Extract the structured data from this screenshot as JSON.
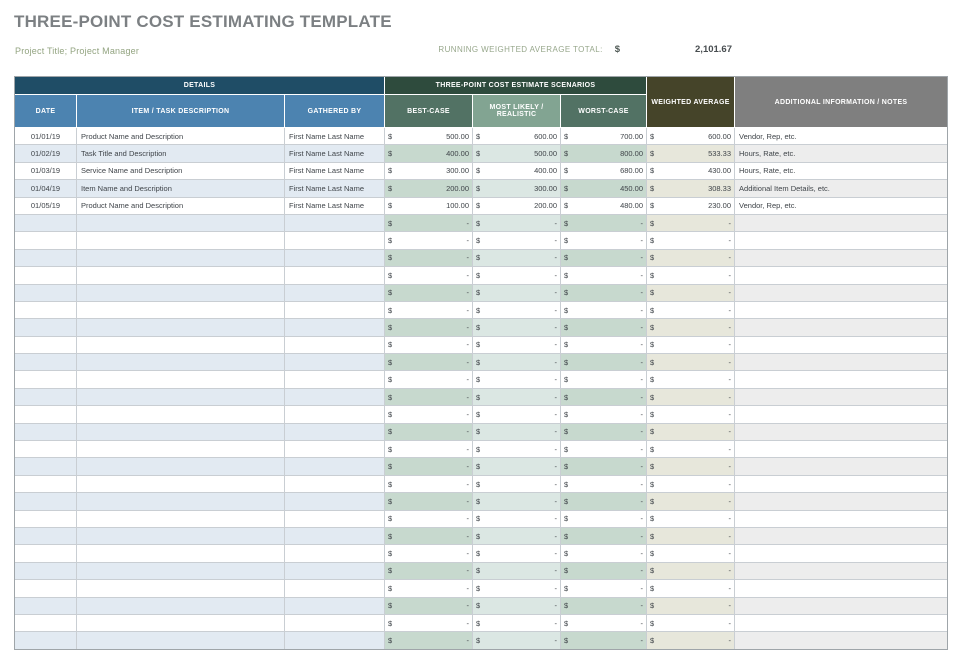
{
  "page": {
    "title": "THREE-POINT COST ESTIMATING TEMPLATE",
    "subtitle": "Project Title; Project Manager",
    "running_total_label": "RUNNING WEIGHTED AVERAGE TOTAL:",
    "currency_symbol": "$",
    "running_total_value": "2,101.67"
  },
  "colors": {
    "accent_green": "#93A481",
    "details_header": "#1F4D66",
    "details_subheader": "#4C83B0",
    "scenarios_header": "#2E4B3D",
    "case_subheader": "#527264",
    "most_likely_subheader": "#82A492",
    "weighted_header": "#454429",
    "notes_header": "#7F7F7F",
    "details_row_tint": "#E2EAF2",
    "case_row_tint": "#C7D9CE",
    "most_likely_row_tint": "#DBE7E3",
    "weighted_row_tint": "#E7E7DB",
    "notes_row_tint": "#EDEDED"
  },
  "table": {
    "group_headers": {
      "details": "DETAILS",
      "scenarios": "THREE-POINT COST ESTIMATE SCENARIOS",
      "weighted": "WEIGHTED AVERAGE",
      "notes": "ADDITIONAL INFORMATION / NOTES"
    },
    "columns": [
      "DATE",
      "ITEM / TASK DESCRIPTION",
      "GATHERED BY",
      "BEST-CASE",
      "MOST LIKELY / REALISTIC",
      "WORST-CASE"
    ],
    "empty_placeholder": "-",
    "rows": [
      {
        "date": "01/01/19",
        "item": "Product Name and Description",
        "gathered_by": "First Name Last Name",
        "best": "500.00",
        "most_likely": "600.00",
        "worst": "700.00",
        "weighted": "600.00",
        "notes": "Vendor, Rep, etc."
      },
      {
        "date": "01/02/19",
        "item": "Task Title and Description",
        "gathered_by": "First Name Last Name",
        "best": "400.00",
        "most_likely": "500.00",
        "worst": "800.00",
        "weighted": "533.33",
        "notes": "Hours, Rate, etc."
      },
      {
        "date": "01/03/19",
        "item": "Service Name and Description",
        "gathered_by": "First Name Last Name",
        "best": "300.00",
        "most_likely": "400.00",
        "worst": "680.00",
        "weighted": "430.00",
        "notes": "Hours, Rate, etc."
      },
      {
        "date": "01/04/19",
        "item": "Item Name and Description",
        "gathered_by": "First Name Last Name",
        "best": "200.00",
        "most_likely": "300.00",
        "worst": "450.00",
        "weighted": "308.33",
        "notes": "Additional Item Details, etc."
      },
      {
        "date": "01/05/19",
        "item": "Product Name and Description",
        "gathered_by": "First Name Last Name",
        "best": "100.00",
        "most_likely": "200.00",
        "worst": "480.00",
        "weighted": "230.00",
        "notes": "Vendor, Rep, etc."
      }
    ],
    "empty_row_count": 25
  }
}
